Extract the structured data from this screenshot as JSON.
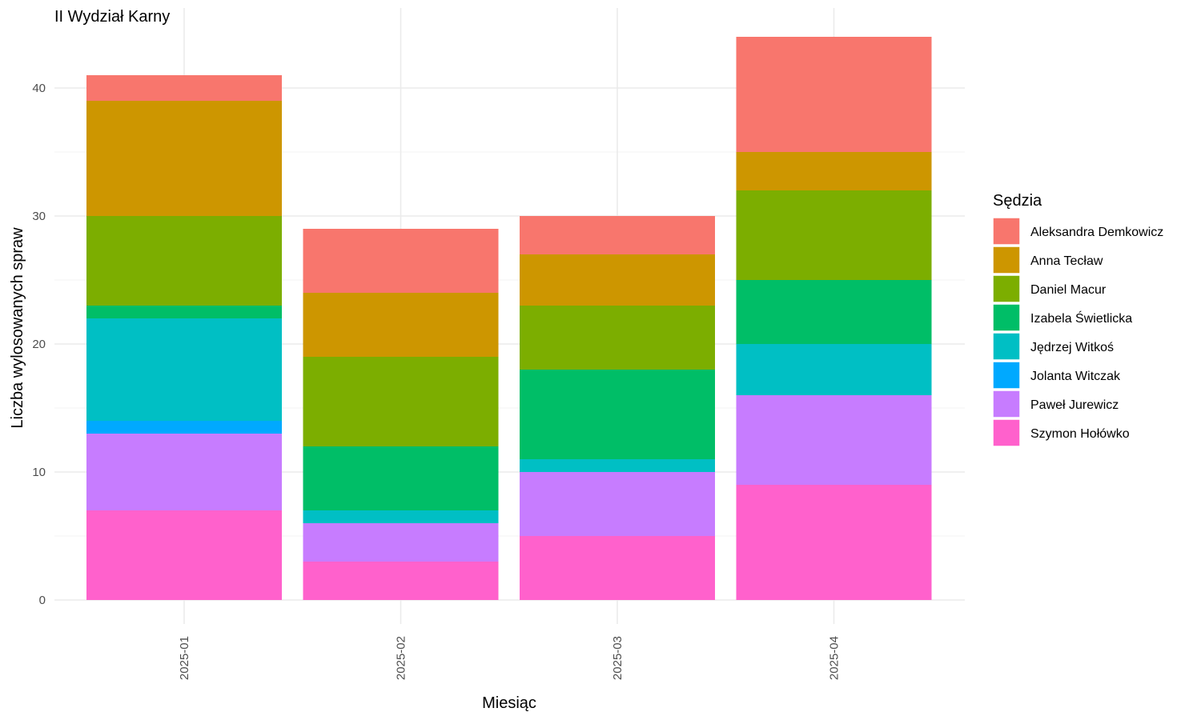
{
  "chart_data": {
    "type": "bar",
    "stacked": true,
    "title": "II Wydział Karny",
    "xlabel": "Miesiąc",
    "ylabel": "Liczba wylosowanych spraw",
    "categories": [
      "2025-01",
      "2025-02",
      "2025-03",
      "2025-04"
    ],
    "ylim": [
      0,
      44
    ],
    "yticks": [
      0,
      10,
      20,
      30,
      40
    ],
    "grid": true,
    "legend_title": "Sędzia",
    "legend_position": "right",
    "series": [
      {
        "name": "Szymon Hołówko",
        "color": "#FF61CC",
        "values": [
          7,
          3,
          5,
          9
        ]
      },
      {
        "name": "Paweł Jurewicz",
        "color": "#C77CFF",
        "values": [
          6,
          3,
          5,
          7
        ]
      },
      {
        "name": "Jolanta Witczak",
        "color": "#00A9FF",
        "values": [
          1,
          0,
          0,
          0
        ]
      },
      {
        "name": "Jędrzej Witkoś",
        "color": "#00BFC4",
        "values": [
          8,
          1,
          1,
          4
        ]
      },
      {
        "name": "Izabela Świetlicka",
        "color": "#00BE67",
        "values": [
          1,
          5,
          7,
          5
        ]
      },
      {
        "name": "Daniel Macur",
        "color": "#7CAE00",
        "values": [
          7,
          7,
          5,
          7
        ]
      },
      {
        "name": "Anna Tecław",
        "color": "#CD9600",
        "values": [
          9,
          5,
          4,
          3
        ]
      },
      {
        "name": "Aleksandra Demkowicz",
        "color": "#F8766D",
        "values": [
          2,
          5,
          3,
          9
        ]
      }
    ],
    "legend_order": [
      "Aleksandra Demkowicz",
      "Anna Tecław",
      "Daniel Macur",
      "Izabela Świetlicka",
      "Jędrzej Witkoś",
      "Jolanta Witczak",
      "Paweł Jurewicz",
      "Szymon Hołówko"
    ]
  }
}
